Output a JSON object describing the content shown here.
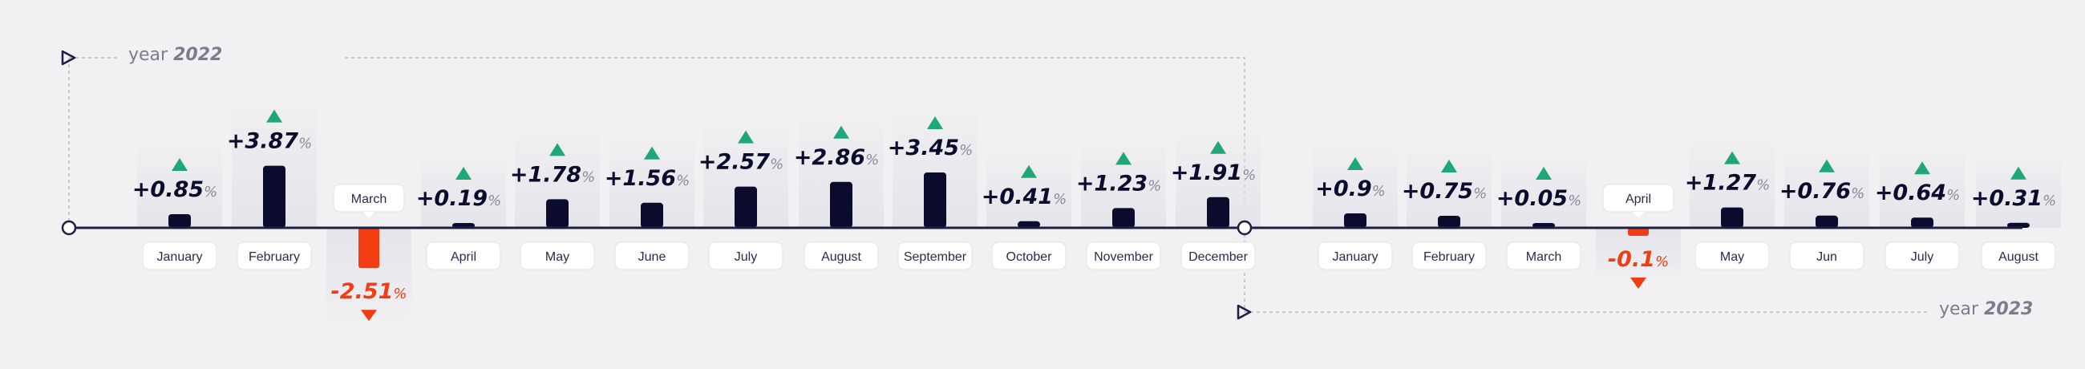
{
  "chart_data": {
    "type": "bar",
    "y_unit": "%",
    "colors": {
      "positive_bar": "#0b0b2e",
      "negative_bar": "#f23c12",
      "up_arrow": "#1fa67a",
      "down_arrow": "#f23c12",
      "value_text": "#0b0b2e",
      "negative_text": "#f23c12",
      "percent_text": "#8a8c9c",
      "baseline": "#1d1f45",
      "column_bg": "#e4e4ea"
    },
    "groups": [
      {
        "year_prefix": "year",
        "year": "2022",
        "categories": [
          "January",
          "February",
          "March",
          "April",
          "May",
          "June",
          "July",
          "August",
          "September",
          "October",
          "November",
          "December"
        ],
        "values": [
          0.85,
          3.87,
          -2.51,
          0.19,
          1.78,
          1.56,
          2.57,
          2.86,
          3.45,
          0.41,
          1.23,
          1.91
        ],
        "value_labels": [
          "+0.85",
          "+3.87",
          "-2.51",
          "+0.19",
          "+1.78",
          "+1.56",
          "+2.57",
          "+2.86",
          "+3.45",
          "+0.41",
          "+1.23",
          "+1.91"
        ]
      },
      {
        "year_prefix": "year",
        "year": "2023",
        "categories": [
          "January",
          "February",
          "March",
          "April",
          "May",
          "Jun",
          "July",
          "August"
        ],
        "values": [
          0.9,
          0.75,
          0.05,
          -0.1,
          1.27,
          0.76,
          0.64,
          0.31
        ],
        "value_labels": [
          "+0.9",
          "+0.75",
          "+0.05",
          "-0.1",
          "+1.27",
          "+0.76",
          "+0.64",
          "+0.31"
        ]
      }
    ]
  }
}
